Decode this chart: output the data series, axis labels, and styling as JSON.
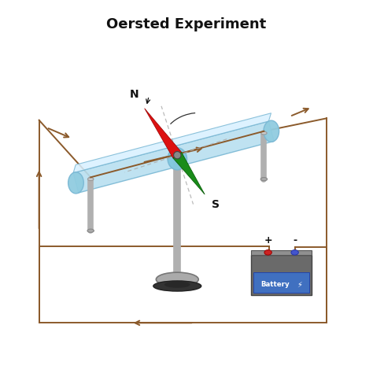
{
  "title": "Oersted Experiment",
  "title_fontsize": 13,
  "title_fontweight": "bold",
  "background_color": "#ffffff",
  "wire_color": "#8B5A2B",
  "wire_linewidth": 1.4,
  "bar_color": "#b8dff0",
  "bar_edge_color": "#7ab8d4",
  "bar_top_color": "#d8f0ff",
  "post_color": "#b0b0b0",
  "post_top_color": "#cccccc",
  "stand_color": "#b0b0b0",
  "base_color_top": "#aaaaaa",
  "base_color_bot": "#444444",
  "compass_red": "#dd1111",
  "compass_green": "#1a8c1a",
  "compass_center": "#666666",
  "battery_body": "#6a6a6a",
  "battery_top": "#888888",
  "battery_blue_bg": "#4070c0",
  "battery_text_color": "#ffffff",
  "battery_plus_knob": "#cc2222",
  "battery_minus_knob": "#4455cc",
  "N_label": "N",
  "S_label": "S",
  "plus_label": "+",
  "minus_label": "-",
  "battery_text": "Battery",
  "dashed_color": "#aaaaaa"
}
